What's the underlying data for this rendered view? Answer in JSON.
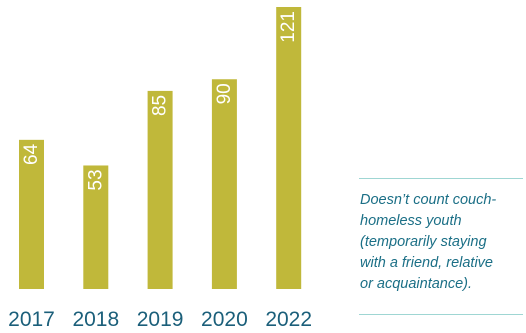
{
  "chart_data": {
    "type": "bar",
    "categories": [
      "2017",
      "2018",
      "2019",
      "2020",
      "2022"
    ],
    "values": [
      64,
      53,
      85,
      90,
      121
    ],
    "data_labels": [
      "64",
      "53",
      "85",
      "90",
      "121"
    ],
    "bar_color": "#c0b83a",
    "label_color": "#ffffff",
    "tick_color": "#1b5f7a",
    "ylim": [
      0,
      121
    ],
    "grid": false,
    "legend": "none"
  },
  "note": {
    "text": "Doesn’t count couch-\nhomeless youth\n(temporarily staying\nwith a friend, relative\nor acquaintance).",
    "text_color": "#1b6f86",
    "rule_color": "#9fd6d3"
  }
}
